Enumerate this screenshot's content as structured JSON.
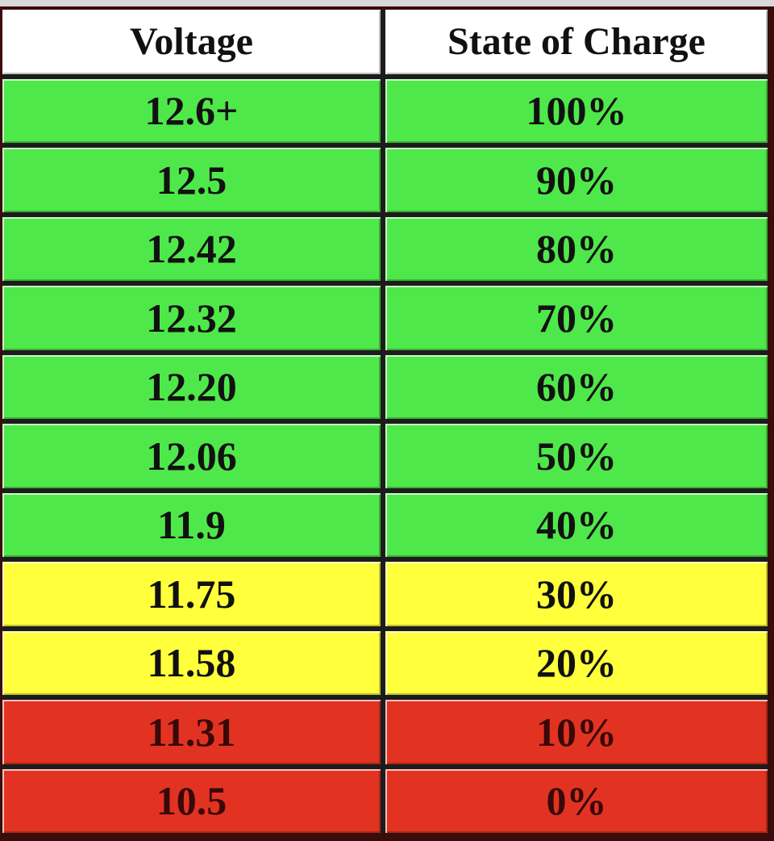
{
  "table": {
    "header": [
      "Voltage",
      "State of Charge"
    ],
    "rows": [
      [
        "12.6+",
        "100%"
      ],
      [
        "12.5",
        "90%"
      ],
      [
        "12.42",
        "80%"
      ],
      [
        "12.32",
        "70%"
      ],
      [
        "12.20",
        "60%"
      ],
      [
        "12.06",
        "50%"
      ],
      [
        "11.9",
        "40%"
      ],
      [
        "11.75",
        "30%"
      ],
      [
        "11.58",
        "20%"
      ],
      [
        "11.31",
        "10%"
      ],
      [
        "10.5",
        "0%"
      ]
    ]
  }
}
